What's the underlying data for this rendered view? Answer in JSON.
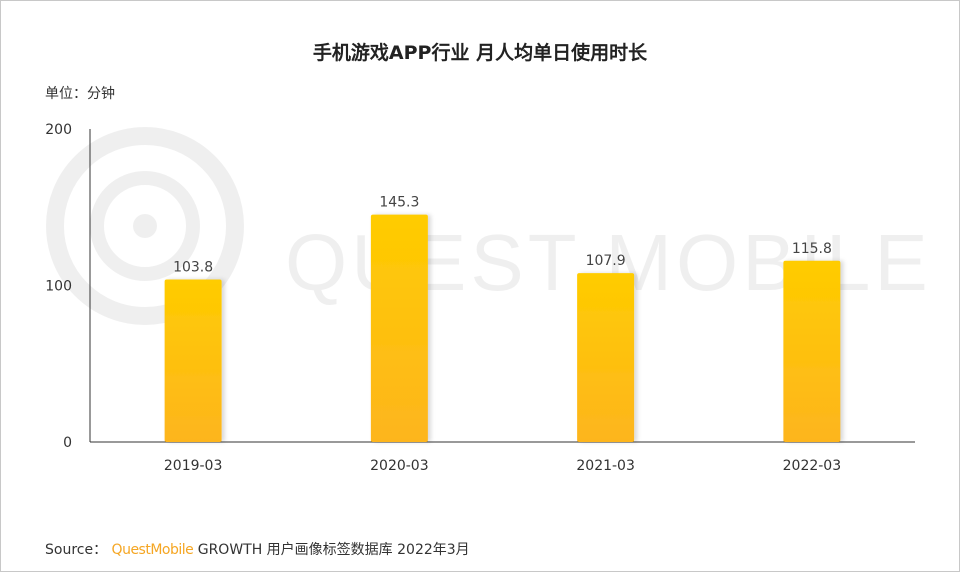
{
  "chart_data": {
    "type": "bar",
    "title": "手机游戏APP行业 月人均单日使用时长",
    "unit_label": "单位：分钟",
    "categories": [
      "2019-03",
      "2020-03",
      "2021-03",
      "2022-03"
    ],
    "values": [
      103.8,
      145.3,
      107.9,
      115.8
    ],
    "value_labels": [
      "103.8",
      "145.3",
      "107.9",
      "115.8"
    ],
    "y_ticks": [
      0,
      100,
      200
    ],
    "ylim": [
      0,
      200
    ],
    "xlabel": "",
    "ylabel": "",
    "grid": false,
    "bar_color_top": "#ffcc00",
    "bar_color_bottom": "#fdb51e"
  },
  "watermark": "QUEST MOBILE",
  "source": {
    "prefix": "Source：",
    "brand": "QuestMobile",
    "text": "GROWTH 用户画像标签数据库 2022年3月"
  }
}
